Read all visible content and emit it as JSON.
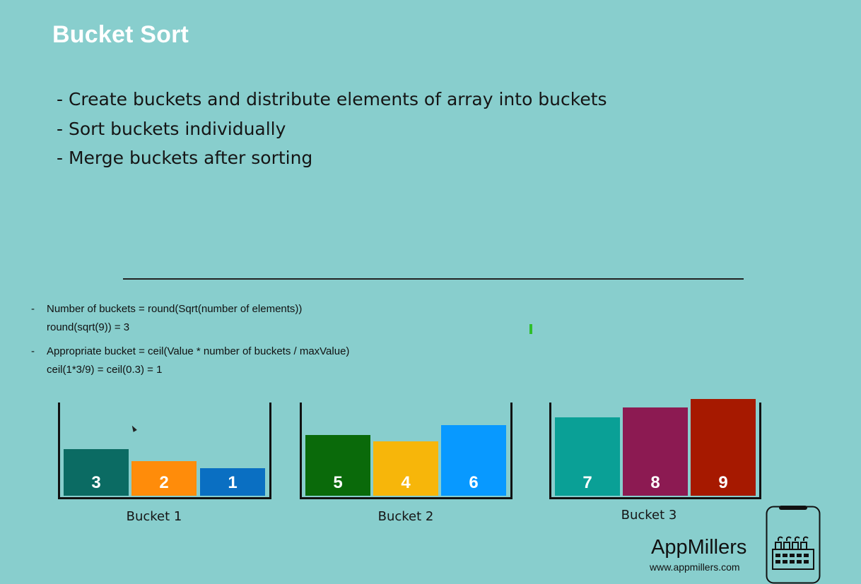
{
  "title": "Bucket Sort",
  "bullets": [
    "- Create buckets and distribute elements of array into buckets",
    "- Sort buckets individually",
    "- Merge buckets after sorting"
  ],
  "formulas": {
    "dash1": "-",
    "line1": "Number of buckets = round(Sqrt(number of elements))",
    "line2": "round(sqrt(9)) = 3",
    "dash2": "-",
    "line3": "Appropriate bucket = ceil(Value * number of buckets / maxValue)",
    "line4": "ceil(1*3/9) = ceil(0.3) = 1"
  },
  "buckets": [
    {
      "label": "Bucket 1",
      "items": [
        {
          "value": "3",
          "color": "#0b6b63"
        },
        {
          "value": "2",
          "color": "#ff8c0a"
        },
        {
          "value": "1",
          "color": "#0a6fc2"
        }
      ]
    },
    {
      "label": "Bucket 2",
      "items": [
        {
          "value": "5",
          "color": "#0a6a0a"
        },
        {
          "value": "4",
          "color": "#f7b60a"
        },
        {
          "value": "6",
          "color": "#0899ff"
        }
      ]
    },
    {
      "label": "Bucket 3",
      "items": [
        {
          "value": "7",
          "color": "#0aa096"
        },
        {
          "value": "8",
          "color": "#8c1a52"
        },
        {
          "value": "9",
          "color": "#a61900"
        }
      ]
    }
  ],
  "branding": {
    "name": "AppMillers",
    "url": "www.appmillers.com",
    "logo_icon": "phone-factory-icon"
  }
}
